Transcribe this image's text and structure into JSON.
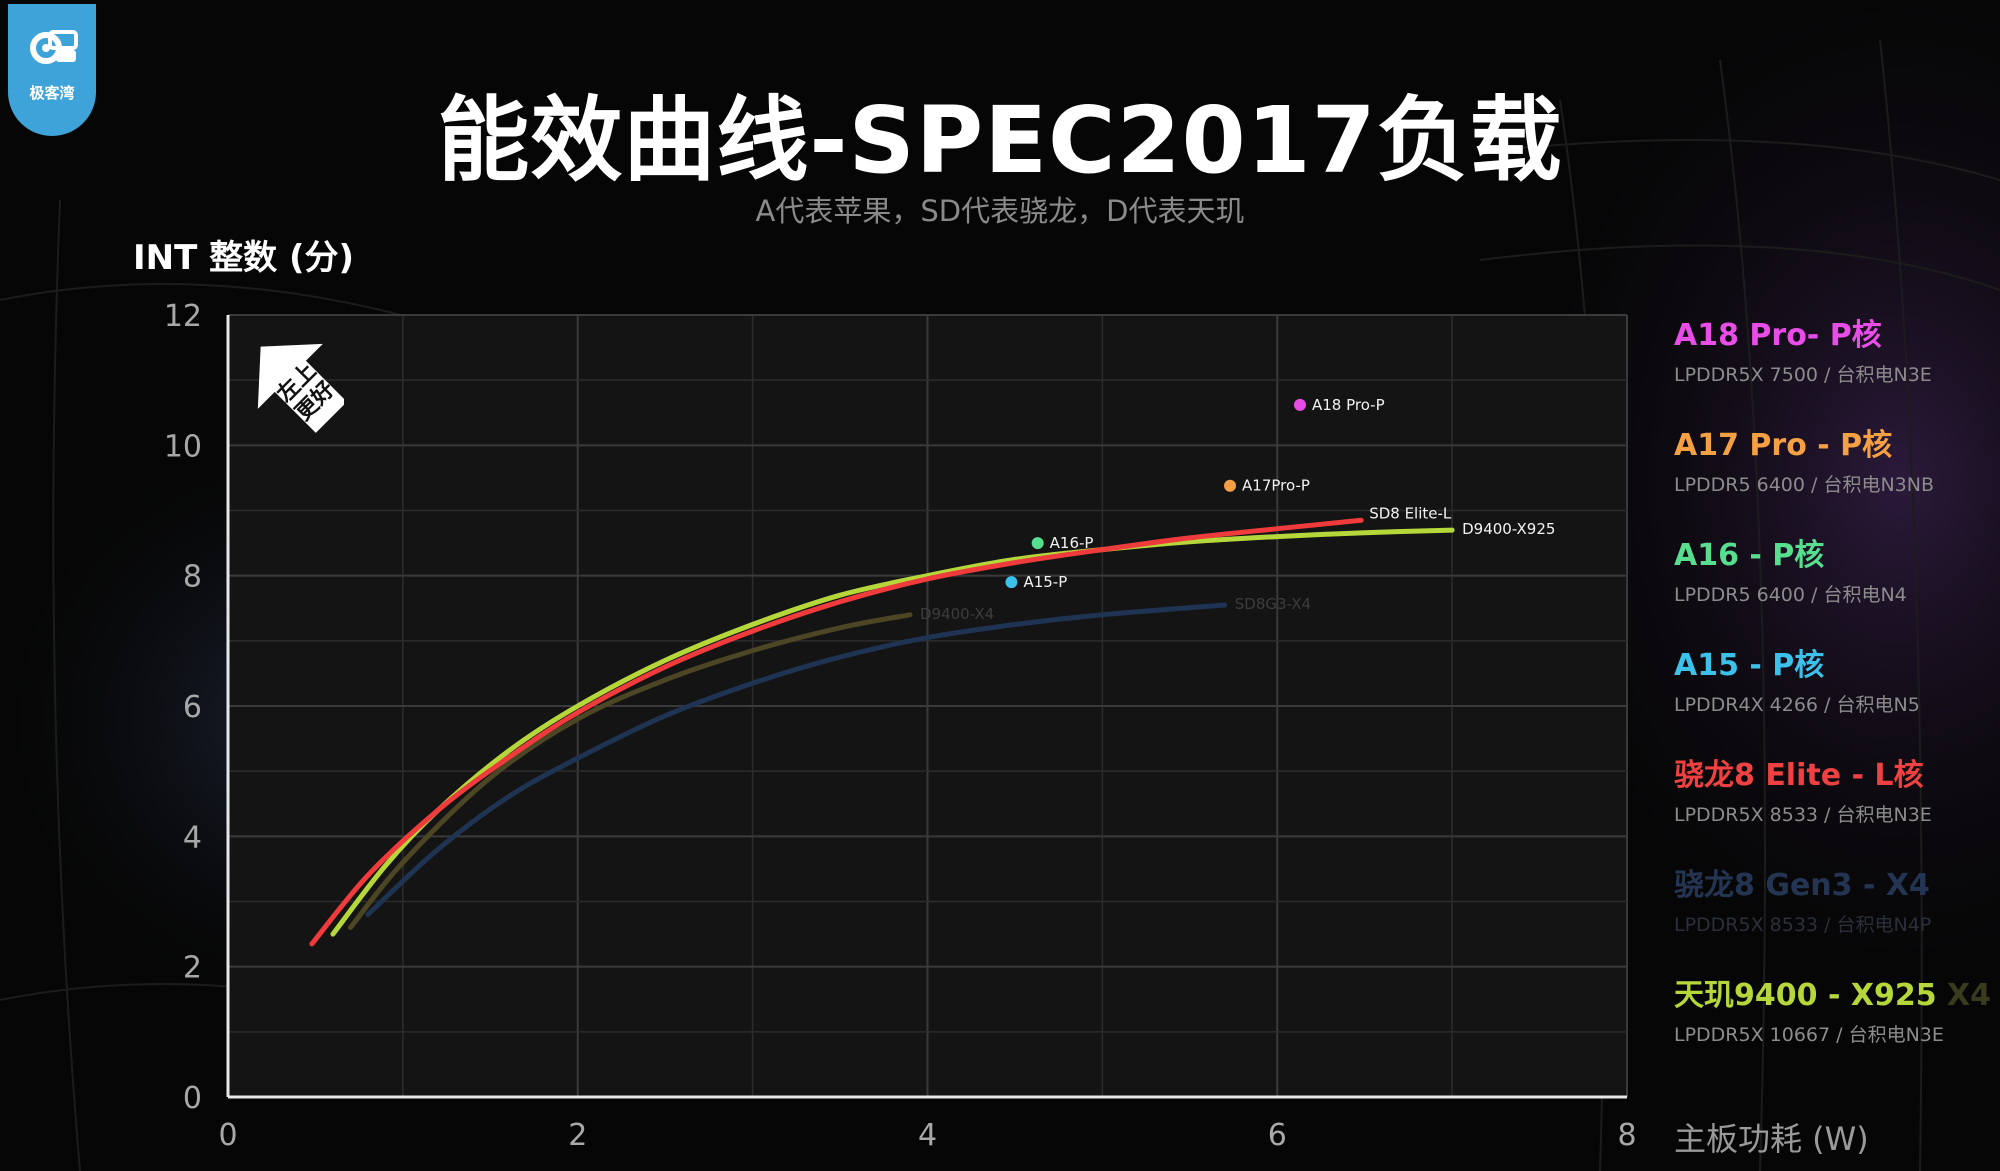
{
  "logo": {
    "text": "极客湾",
    "icon": "gear-chip-icon"
  },
  "title": "能效曲线-SPEC2017负载",
  "subtitle": "A代表苹果，SD代表骁龙，D代表天玑",
  "badge": {
    "text": "左上更好",
    "line1": "左上",
    "line2": "更好"
  },
  "legend": [
    {
      "name": "A18 Pro- P核",
      "sub": "LPDDR5X 7500 / 台积电N3E",
      "color": "#e94de8"
    },
    {
      "name": "A17 Pro - P核",
      "sub": "LPDDR5 6400 / 台积电N3NB",
      "color": "#f5a043"
    },
    {
      "name": "A16 - P核",
      "sub": "LPDDR5 6400 / 台积电N4",
      "color": "#57de8f"
    },
    {
      "name": "A15 - P核",
      "sub": "LPDDR4X 4266 / 台积电N5",
      "color": "#3cc1ea"
    },
    {
      "name": "骁龙8 Elite - L核",
      "sub": "LPDDR5X 8533 / 台积电N3E",
      "color": "#ef4141"
    },
    {
      "name": "骁龙8 Gen3 - X4",
      "sub": "LPDDR5X 8533 / 台积电N4P",
      "color": "#243553",
      "subcolor": "#2a2f3a"
    },
    {
      "name": "天玑9400 - X925",
      "extra": "X4",
      "sub": "LPDDR5X 10667 / 台积电N3E",
      "color": "#b5d73a"
    }
  ],
  "chart_data": {
    "type": "line",
    "title": "能效曲线-SPEC2017负载",
    "xlabel": "主板功耗 (W)",
    "ylabel": "INT 整数 (分)",
    "xlim": [
      0,
      8
    ],
    "ylim": [
      0,
      12
    ],
    "xticks": [
      0,
      2,
      4,
      6,
      8
    ],
    "yticks": [
      0,
      2,
      4,
      6,
      8,
      10,
      12
    ],
    "grid": true,
    "legend_placement": "right",
    "series": [
      {
        "name": "SD8 Elite-L",
        "kind": "line",
        "color": "#ef3b3b",
        "x": [
          0.48,
          0.8,
          1.2,
          1.6,
          2.0,
          2.5,
          3.0,
          3.5,
          4.0,
          4.5,
          5.0,
          5.5,
          6.0,
          6.48
        ],
        "y": [
          2.35,
          3.4,
          4.4,
          5.2,
          5.9,
          6.6,
          7.15,
          7.6,
          7.95,
          8.2,
          8.4,
          8.58,
          8.72,
          8.85
        ]
      },
      {
        "name": "D9400-X925",
        "kind": "line",
        "color": "#b5d73a",
        "x": [
          0.6,
          0.9,
          1.2,
          1.6,
          2.0,
          2.5,
          3.0,
          3.5,
          4.0,
          4.5,
          5.0,
          5.5,
          6.0,
          6.5,
          7.0
        ],
        "y": [
          2.5,
          3.55,
          4.4,
          5.3,
          6.0,
          6.7,
          7.25,
          7.7,
          8.0,
          8.25,
          8.4,
          8.52,
          8.6,
          8.66,
          8.7
        ]
      },
      {
        "name": "D9400-X4",
        "kind": "line",
        "color": "#4c4624",
        "x": [
          0.7,
          1.0,
          1.5,
          2.0,
          2.5,
          3.0,
          3.5,
          3.9
        ],
        "y": [
          2.6,
          3.6,
          4.9,
          5.8,
          6.4,
          6.85,
          7.2,
          7.4
        ]
      },
      {
        "name": "SD8G3-X4",
        "kind": "line",
        "color": "#1f3352",
        "x": [
          0.8,
          1.2,
          1.6,
          2.0,
          2.5,
          3.0,
          3.5,
          4.0,
          4.5,
          5.0,
          5.7
        ],
        "y": [
          2.8,
          3.8,
          4.6,
          5.2,
          5.85,
          6.35,
          6.75,
          7.05,
          7.25,
          7.4,
          7.55
        ]
      },
      {
        "name": "A18 Pro-P",
        "kind": "point",
        "color": "#e94de8",
        "x": [
          6.13
        ],
        "y": [
          10.62
        ]
      },
      {
        "name": "A17Pro-P",
        "kind": "point",
        "color": "#f5a043",
        "x": [
          5.73
        ],
        "y": [
          9.38
        ]
      },
      {
        "name": "A16-P",
        "kind": "point",
        "color": "#57de8f",
        "x": [
          4.63
        ],
        "y": [
          8.5
        ]
      },
      {
        "name": "A15-P",
        "kind": "point",
        "color": "#3cc1ea",
        "x": [
          4.48
        ],
        "y": [
          7.9
        ]
      }
    ]
  }
}
